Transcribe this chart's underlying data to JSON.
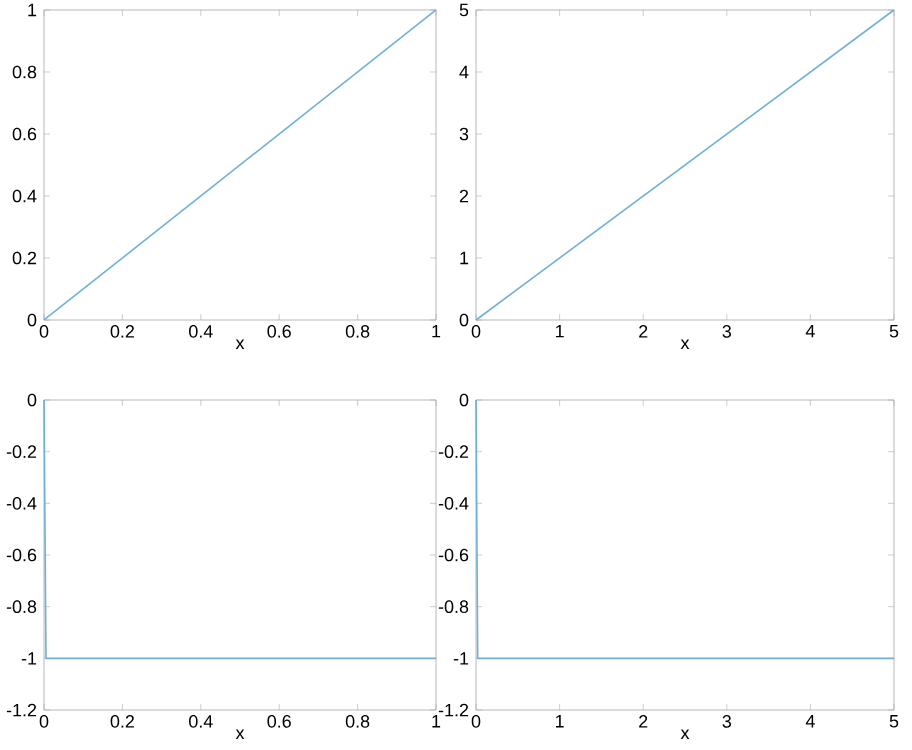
{
  "chart_data": [
    {
      "type": "line",
      "xlabel": "x",
      "xlim": [
        0,
        1
      ],
      "ylim": [
        0,
        1
      ],
      "xticks": [
        0,
        0.2,
        0.4,
        0.6,
        0.8,
        1
      ],
      "yticks": [
        0,
        0.2,
        0.4,
        0.6,
        0.8,
        1
      ],
      "x": [
        0,
        1
      ],
      "series": [
        {
          "color": "#6fb0d8",
          "values": [
            0,
            1
          ]
        }
      ]
    },
    {
      "type": "line",
      "xlabel": "x",
      "xlim": [
        0,
        5
      ],
      "ylim": [
        0,
        5
      ],
      "xticks": [
        0,
        1,
        2,
        3,
        4,
        5
      ],
      "yticks": [
        0,
        1,
        2,
        3,
        4,
        5
      ],
      "x": [
        0,
        5
      ],
      "series": [
        {
          "color": "#6fb0d8",
          "values": [
            0,
            5
          ]
        }
      ]
    },
    {
      "type": "line",
      "xlabel": "x",
      "xlim": [
        0,
        1
      ],
      "ylim": [
        -1.2,
        0
      ],
      "xticks": [
        0,
        0.2,
        0.4,
        0.6,
        0.8,
        1
      ],
      "yticks": [
        -1.2,
        -1,
        -0.8,
        -0.6,
        -0.4,
        -0.2,
        0
      ],
      "x": [
        0,
        0.005,
        1
      ],
      "series": [
        {
          "color": "#6fb0d8",
          "values": [
            0,
            -1,
            -1
          ]
        }
      ]
    },
    {
      "type": "line",
      "xlabel": "x",
      "xlim": [
        0,
        5
      ],
      "ylim": [
        -1.2,
        0
      ],
      "xticks": [
        0,
        1,
        2,
        3,
        4,
        5
      ],
      "yticks": [
        -1.2,
        -1,
        -0.8,
        -0.6,
        -0.4,
        -0.2,
        0
      ],
      "x": [
        0,
        0.02,
        5
      ],
      "series": [
        {
          "color": "#6fb0d8",
          "values": [
            0,
            -1,
            -1
          ]
        }
      ]
    }
  ]
}
